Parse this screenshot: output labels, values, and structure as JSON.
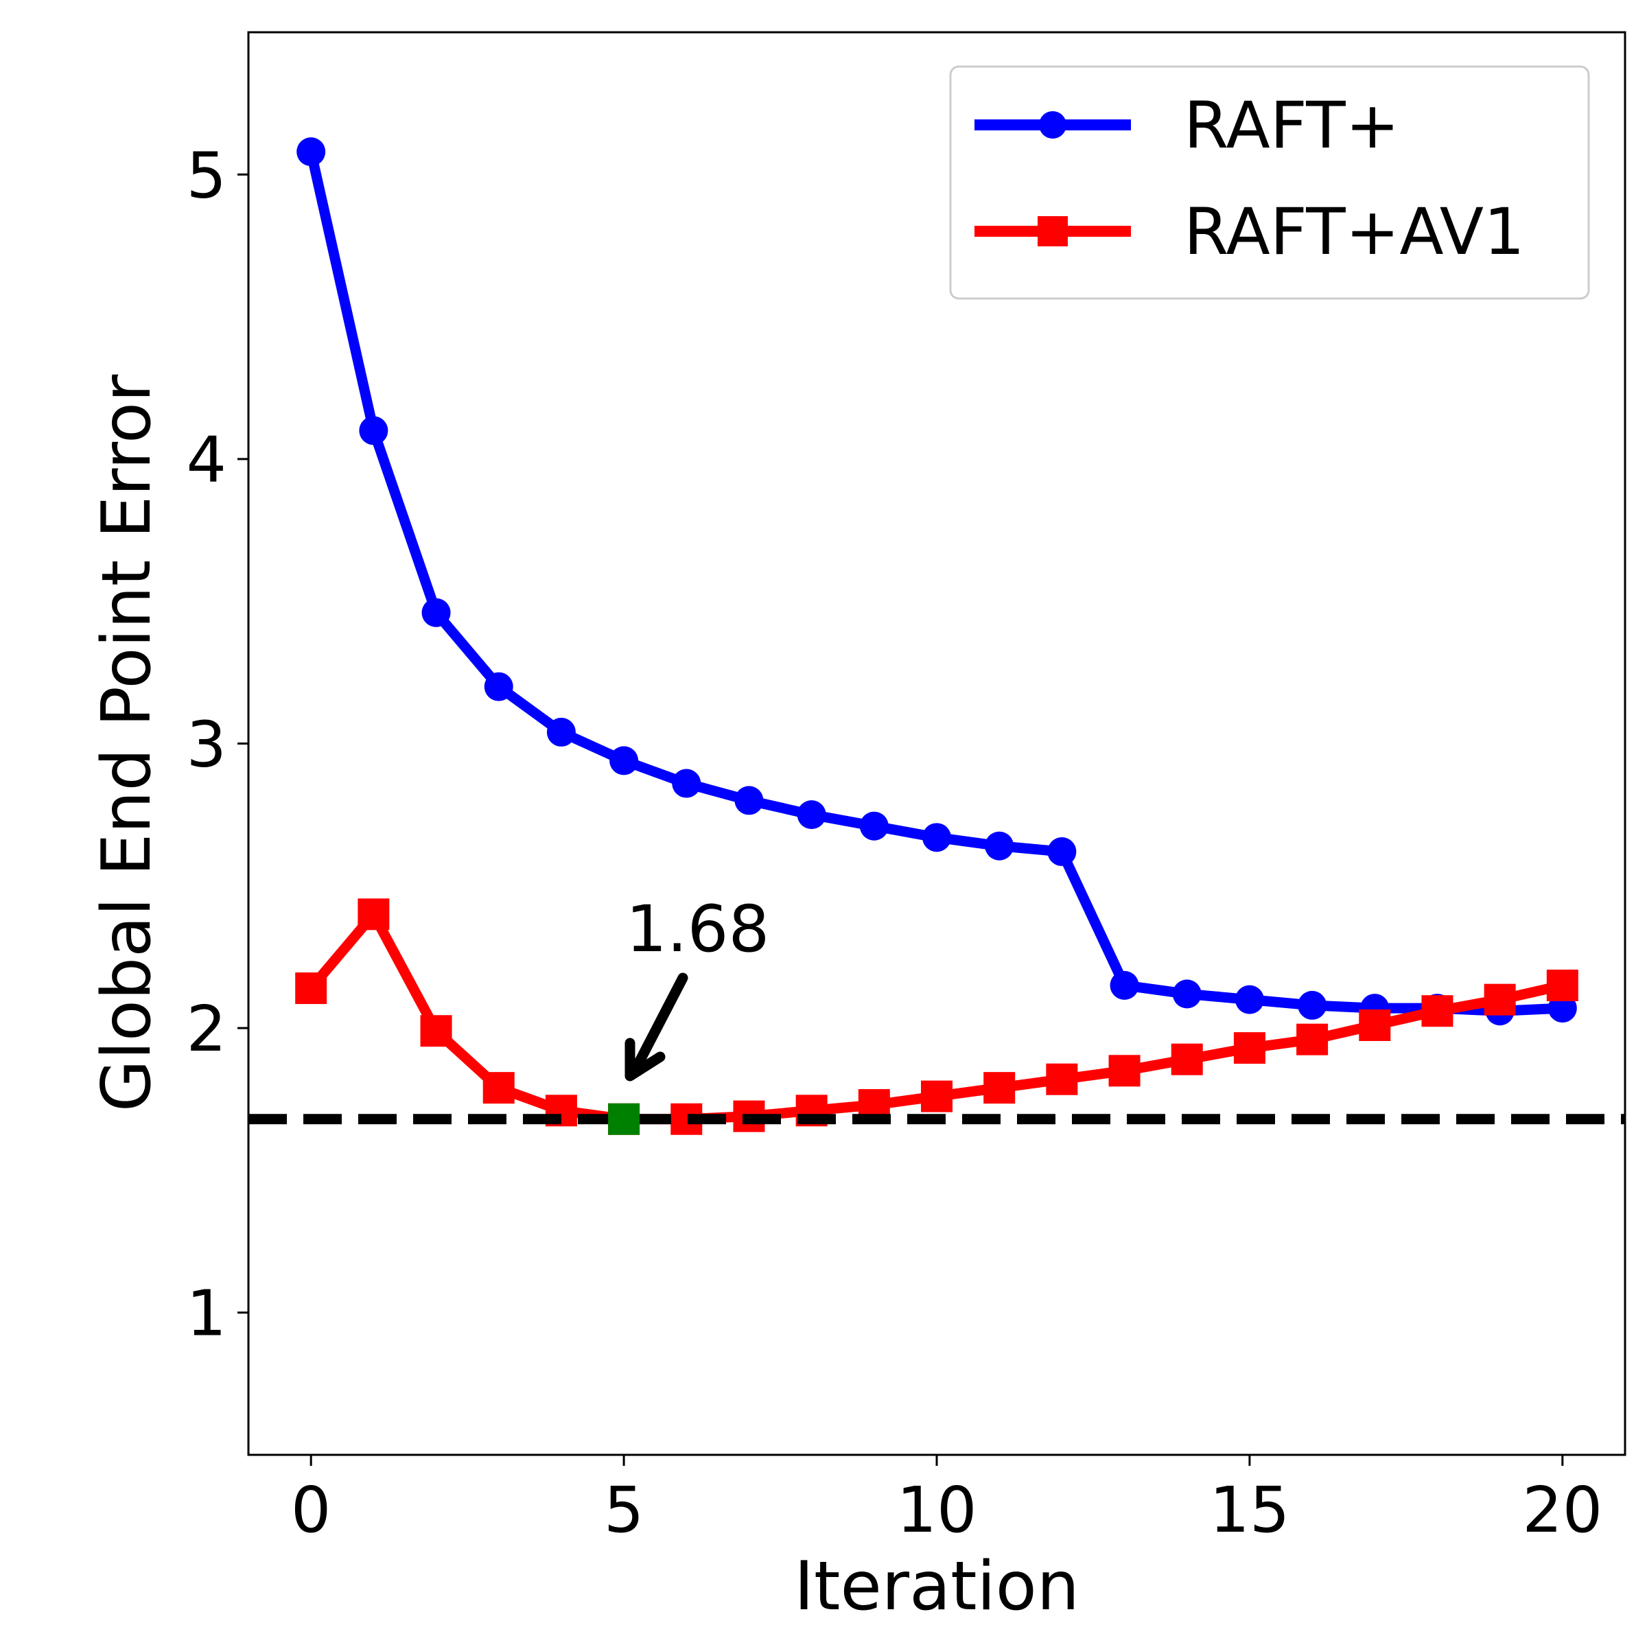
{
  "chart_data": {
    "type": "line",
    "title": "",
    "xlabel": "Iteration",
    "ylabel": "Global End Point Error",
    "xlim": [
      -1,
      21
    ],
    "ylim": [
      0.5,
      5.5
    ],
    "xticks": [
      0,
      5,
      10,
      15,
      20
    ],
    "yticks": [
      1,
      2,
      3,
      4,
      5
    ],
    "grid": false,
    "legend_position": "top-right",
    "x": [
      0,
      1,
      2,
      3,
      4,
      5,
      6,
      7,
      8,
      9,
      10,
      11,
      12,
      13,
      14,
      15,
      16,
      17,
      18,
      19,
      20
    ],
    "series": [
      {
        "name": "RAFT+",
        "color": "#0000ff",
        "marker": "circle",
        "values": [
          5.08,
          4.1,
          3.46,
          3.2,
          3.04,
          2.94,
          2.86,
          2.8,
          2.75,
          2.71,
          2.67,
          2.64,
          2.62,
          2.15,
          2.12,
          2.1,
          2.08,
          2.07,
          2.07,
          2.06,
          2.07
        ]
      },
      {
        "name": "RAFT+AV1",
        "color": "#ff0000",
        "marker": "square",
        "values": [
          2.14,
          2.4,
          1.99,
          1.79,
          1.71,
          1.68,
          1.68,
          1.69,
          1.71,
          1.73,
          1.76,
          1.79,
          1.82,
          1.85,
          1.89,
          1.93,
          1.96,
          2.01,
          2.06,
          2.1,
          2.15
        ]
      }
    ],
    "reference_line": {
      "y": 1.68,
      "color": "#000000",
      "style": "dashed"
    },
    "highlight_point": {
      "x": 5,
      "y": 1.68,
      "color": "#008000",
      "label": "1.68"
    }
  }
}
